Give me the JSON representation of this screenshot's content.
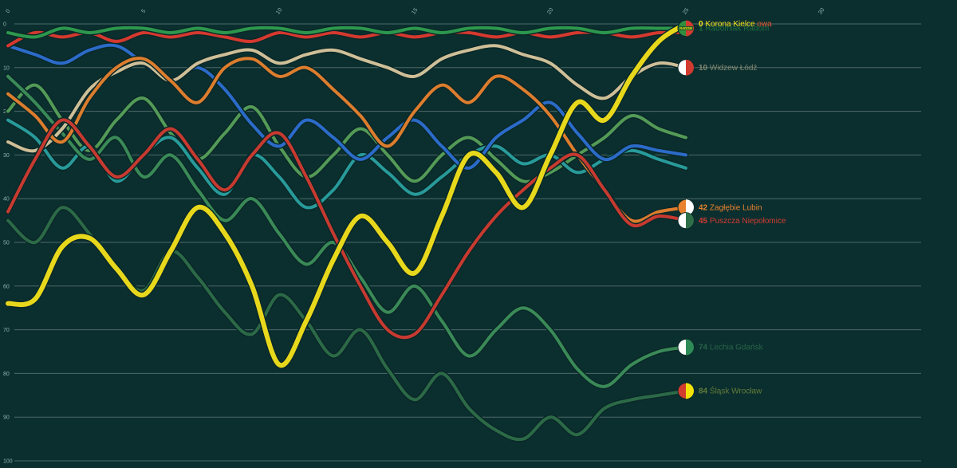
{
  "page": {
    "background": "#0b2f2f",
    "grid_color": "rgba(255,255,255,0.28)",
    "tick_color": "#8fb0ab"
  },
  "chart_data": {
    "type": "line",
    "title": "",
    "x_tick_labels": [
      "0",
      "5",
      "10",
      "15",
      "20",
      "25",
      "30"
    ],
    "y_tick_labels": [
      "0",
      "10",
      "20",
      "30",
      "40",
      "50",
      "60",
      "70",
      "80",
      "90",
      "100"
    ],
    "y_range": [
      0,
      100
    ],
    "y_inverted": true,
    "grid": true,
    "legend_position": "right-end-labels",
    "series": [
      {
        "id": "green-mid",
        "name": "",
        "color": "#57a05a",
        "width": 4,
        "values": [
          20,
          14,
          22,
          29,
          22,
          17,
          25,
          31,
          25,
          19,
          28,
          35,
          30,
          24,
          30,
          36,
          30,
          26,
          31,
          36,
          34,
          30,
          26,
          21,
          24,
          26
        ]
      },
      {
        "id": "teal",
        "name": "",
        "color": "#2aa0a0",
        "width": 4,
        "values": [
          22,
          26,
          33,
          28,
          36,
          30,
          26,
          33,
          39,
          30,
          35,
          42,
          38,
          30,
          34,
          39,
          35,
          30,
          28,
          32,
          30,
          34,
          31,
          29,
          31,
          33
        ]
      },
      {
        "id": "blue",
        "name": "",
        "color": "#2d6fd2",
        "width": 4,
        "values": [
          5,
          7,
          9,
          6,
          5,
          9,
          13,
          10,
          15,
          23,
          28,
          22,
          26,
          31,
          26,
          22,
          28,
          33,
          26,
          22,
          18,
          25,
          31,
          28,
          29,
          30
        ]
      },
      {
        "id": "slask",
        "name": "Śląsk Wrocław",
        "color": "#2e6e49",
        "width": 4,
        "values": [
          45,
          50,
          42,
          48,
          56,
          61,
          52,
          58,
          66,
          71,
          62,
          68,
          76,
          70,
          79,
          86,
          80,
          88,
          93,
          95,
          90,
          94,
          88,
          86,
          85,
          84
        ],
        "label": {
          "rank": "84",
          "dim": true,
          "text_color": "#a8b83f"
        },
        "badge": {
          "colors": [
            "#d23b30",
            "#f2e20a"
          ]
        }
      },
      {
        "id": "lechia",
        "name": "Lechia Gdańsk",
        "color": "#3d8f5a",
        "width": 4,
        "values": [
          12,
          18,
          25,
          31,
          26,
          35,
          30,
          38,
          45,
          40,
          48,
          55,
          50,
          58,
          66,
          60,
          68,
          76,
          70,
          65,
          70,
          79,
          83,
          78,
          75,
          74
        ],
        "label": {
          "rank": "74",
          "dim": true
        },
        "badge": {
          "colors": [
            "#ffffff",
            "#2e8b57"
          ]
        }
      },
      {
        "id": "widzew",
        "name": "Widzew Łódź",
        "color": "#d9c79e",
        "width": 4,
        "values": [
          27,
          29,
          24,
          15,
          11,
          9,
          13,
          9,
          7,
          6,
          9,
          7,
          6,
          8,
          10,
          12,
          8,
          6,
          5,
          7,
          9,
          14,
          17,
          12,
          9,
          10
        ],
        "label": {
          "rank": "10",
          "dim": true
        },
        "badge": {
          "colors": [
            "#ffffff",
            "#d23b30"
          ]
        }
      },
      {
        "id": "zaglebie",
        "name": "Zagłębie Lubin",
        "color": "#e8822e",
        "width": 4,
        "values": [
          16,
          21,
          27,
          17,
          10,
          8,
          13,
          18,
          10,
          8,
          12,
          10,
          15,
          21,
          28,
          20,
          14,
          18,
          12,
          15,
          21,
          30,
          38,
          45,
          43,
          42
        ],
        "label": {
          "rank": "42",
          "dim": false
        },
        "badge": {
          "colors": [
            "#e8822e",
            "#ffffff"
          ]
        }
      },
      {
        "id": "puszcza",
        "name": "Puszcza Niepołomice",
        "color": "#d23b30",
        "width": 4,
        "values": [
          43,
          31,
          22,
          28,
          35,
          30,
          24,
          31,
          38,
          30,
          25,
          35,
          48,
          60,
          70,
          71,
          62,
          52,
          44,
          38,
          33,
          30,
          38,
          46,
          44,
          45
        ],
        "label": {
          "rank": "45",
          "dim": false
        },
        "badge": {
          "colors": [
            "#ffffff",
            "#2e6e49"
          ]
        }
      },
      {
        "id": "red-top",
        "name": "",
        "color": "#e03a2f",
        "width": 4,
        "values": [
          5,
          2,
          3,
          2,
          4,
          2,
          3,
          2,
          3,
          4,
          2,
          3,
          2,
          3,
          2,
          3,
          2,
          2,
          3,
          2,
          3,
          2,
          2,
          3,
          2,
          2
        ]
      },
      {
        "id": "radomiak",
        "name": "Radomiak Radom",
        "color": "#2f9e4f",
        "width": 4,
        "values": [
          2,
          3,
          1,
          2,
          1,
          1,
          2,
          1,
          2,
          1,
          1,
          2,
          1,
          1,
          2,
          1,
          2,
          1,
          1,
          2,
          1,
          1,
          2,
          1,
          1,
          1
        ],
        "label": {
          "rank": "1",
          "dim": true
        },
        "badge": {
          "colors": [
            "#2f8f3f",
            "#d23b30"
          ],
          "text": "RADOM"
        }
      },
      {
        "id": "korona",
        "name": "Korona Kielce",
        "color": "#f4e11b",
        "width": 6,
        "values": [
          64,
          63,
          51,
          49,
          56,
          62,
          52,
          42,
          48,
          60,
          78,
          68,
          54,
          44,
          50,
          57,
          44,
          30,
          34,
          42,
          30,
          18,
          22,
          12,
          4,
          0
        ],
        "label": {
          "rank": "0",
          "dim": false,
          "suffix": {
            "text": "owa",
            "color": "#e8542f"
          }
        }
      }
    ]
  }
}
